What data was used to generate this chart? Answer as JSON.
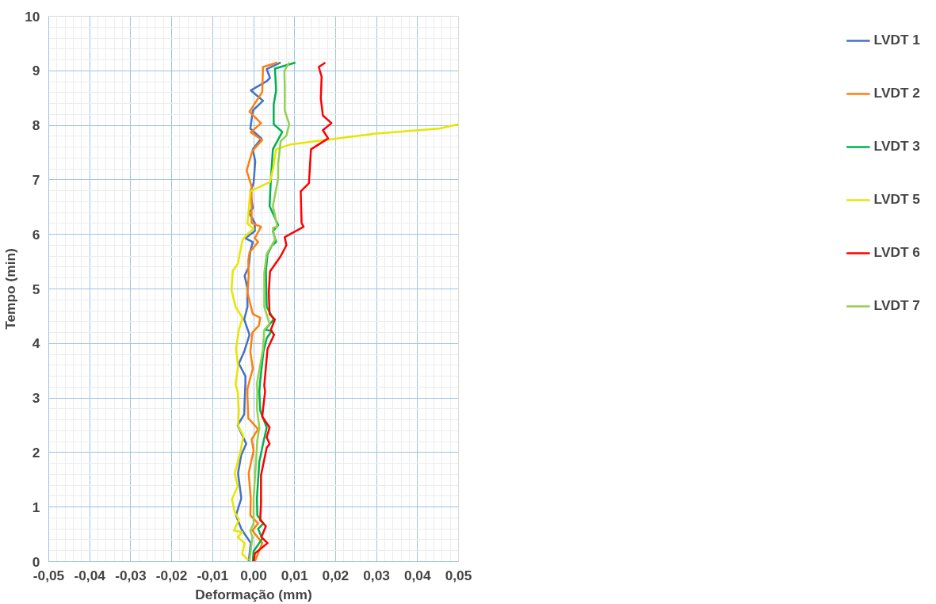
{
  "chart_data": {
    "type": "line",
    "xlabel": "Deformação (mm)",
    "ylabel": "Tempo (min)",
    "xlim": [
      -0.05,
      0.05
    ],
    "ylim": [
      0,
      10
    ],
    "xticks": [
      {
        "value": -0.05,
        "label": "-0,05"
      },
      {
        "value": -0.04,
        "label": "-0,04"
      },
      {
        "value": -0.03,
        "label": "-0,03"
      },
      {
        "value": -0.02,
        "label": "-0,02"
      },
      {
        "value": -0.01,
        "label": "-0,01"
      },
      {
        "value": 0,
        "label": "0,00"
      },
      {
        "value": 0.01,
        "label": "0,01"
      },
      {
        "value": 0.02,
        "label": "0,02"
      },
      {
        "value": 0.03,
        "label": "0,03"
      },
      {
        "value": 0.04,
        "label": "0,04"
      },
      {
        "value": 0.05,
        "label": "0,05"
      }
    ],
    "yticks": [
      0,
      1,
      2,
      3,
      4,
      5,
      6,
      7,
      8,
      9,
      10
    ],
    "grid": true,
    "legend": "right",
    "marker": "none",
    "line_style": "solid",
    "series": [
      {
        "name": "LVDT 1",
        "color": "#4472c4",
        "x": [
          -0.0012,
          -0.0007,
          -0.003,
          -0.0043,
          -0.003,
          -0.0038,
          -0.003,
          -0.0018,
          -0.0039,
          -0.0023,
          -0.0022,
          -0.002,
          -0.002,
          -0.0036,
          -0.0023,
          -0.001,
          -0.0023,
          -0.0015,
          -0.0015,
          -0.0022,
          -0.0012,
          -0.0008,
          -0.0002,
          -0.002,
          0.0003,
          0.0003,
          -0.0012,
          -0.0002,
          -0.0008,
          0.0,
          0.0004,
          -0.0002,
          0.0019,
          -0.0008,
          -0.0002,
          0.0023,
          -0.0007,
          0.0032,
          0.004,
          0.0032,
          0.0066
        ],
        "values": [
          0,
          0.34,
          0.6,
          0.85,
          1.16,
          1.62,
          1.96,
          2.16,
          2.5,
          2.7,
          2.92,
          3.28,
          3.4,
          3.63,
          3.85,
          4.16,
          4.44,
          4.67,
          5.02,
          5.24,
          5.4,
          5.7,
          5.86,
          5.93,
          6.06,
          6.21,
          6.4,
          6.48,
          6.79,
          6.94,
          7.34,
          7.56,
          7.76,
          7.94,
          8.27,
          8.45,
          8.64,
          8.81,
          8.87,
          9.03,
          9.15
        ]
      },
      {
        "name": "LVDT 2",
        "color": "#ff7f0e",
        "x": [
          0.0003,
          0.0021,
          -0.0003,
          0.0011,
          -0.0008,
          -0.0007,
          -0.0012,
          0.0,
          -0.0005,
          0.0011,
          -0.0013,
          -0.0015,
          -0.0015,
          -0.0002,
          -0.0008,
          -0.0003,
          0.0013,
          0.0016,
          -0.0002,
          -0.0015,
          -0.0012,
          -0.0013,
          -0.001,
          0.0011,
          0.0003,
          0.0018,
          -0.0005,
          -0.0005,
          -0.0017,
          -0.0003,
          0.0021,
          -0.0007,
          0.0018,
          -0.001,
          0.0021,
          0.0023,
          0.0058
        ],
        "values": [
          0,
          0.34,
          0.57,
          0.7,
          0.85,
          1.16,
          1.62,
          2.04,
          2.24,
          2.43,
          2.63,
          3.01,
          3.17,
          3.54,
          3.85,
          4.2,
          4.33,
          4.47,
          4.54,
          4.93,
          5.24,
          5.52,
          5.67,
          5.86,
          5.93,
          6.14,
          6.21,
          6.88,
          7.17,
          7.53,
          7.73,
          7.87,
          8.04,
          8.25,
          8.61,
          9.07,
          9.15
        ]
      },
      {
        "name": "LVDT 3",
        "color": "#00b050",
        "x": [
          -0.0002,
          0.0,
          0.0021,
          0.0011,
          0.0024,
          0.0009,
          0.0008,
          0.0014,
          0.0023,
          0.0032,
          0.0016,
          0.0014,
          0.0016,
          0.0024,
          0.0032,
          0.0044,
          0.0028,
          0.0049,
          0.0032,
          0.003,
          0.0034,
          0.0045,
          0.0055,
          0.0047,
          0.006,
          0.0039,
          0.0042,
          0.0047,
          0.007,
          0.0049,
          0.0049,
          0.0055,
          0.0052,
          0.0102
        ],
        "values": [
          0,
          0.19,
          0.42,
          0.6,
          0.7,
          0.85,
          1.16,
          1.84,
          2.16,
          2.46,
          2.77,
          3.12,
          3.32,
          3.85,
          4.1,
          4.23,
          4.25,
          4.44,
          4.67,
          5.33,
          5.64,
          5.8,
          5.86,
          6.06,
          6.17,
          6.52,
          6.99,
          7.56,
          7.88,
          8.02,
          8.38,
          8.64,
          9.04,
          9.15
        ]
      },
      {
        "name": "LVDT 5",
        "color": "#e6e600",
        "x": [
          -0.0013,
          -0.0028,
          -0.0022,
          -0.0039,
          -0.0028,
          -0.0048,
          -0.0036,
          -0.0046,
          -0.0053,
          -0.0039,
          -0.0046,
          -0.0033,
          -0.0025,
          -0.0038,
          -0.0036,
          -0.0039,
          -0.0044,
          -0.0038,
          -0.0043,
          -0.0036,
          -0.0027,
          -0.0044,
          -0.0054,
          -0.0051,
          -0.0038,
          -0.0034,
          -0.0027,
          -0.0012,
          0.0,
          -0.0015,
          -0.0012,
          -0.0008,
          0.004,
          0.0047,
          0.0055,
          0.009,
          0.0298,
          0.0453,
          0.05
        ],
        "values": [
          0.03,
          0.14,
          0.34,
          0.45,
          0.54,
          0.57,
          0.77,
          0.91,
          1.14,
          1.38,
          1.62,
          1.99,
          2.3,
          2.5,
          2.77,
          3.12,
          3.25,
          3.59,
          3.9,
          4.25,
          4.47,
          4.67,
          4.98,
          5.33,
          5.47,
          5.64,
          5.9,
          6.03,
          6.1,
          6.2,
          6.45,
          6.79,
          6.96,
          7.19,
          7.56,
          7.65,
          7.85,
          7.94,
          8.02
        ]
      },
      {
        "name": "LVDT 6",
        "color": "#ff0000",
        "x": [
          0.0,
          0.0003,
          0.0034,
          0.0019,
          0.003,
          0.0016,
          0.0018,
          0.0018,
          0.0032,
          0.0039,
          0.0032,
          0.0039,
          0.0021,
          0.0028,
          0.0026,
          0.0034,
          0.005,
          0.0042,
          0.0052,
          0.0039,
          0.0037,
          0.004,
          0.0066,
          0.008,
          0.0076,
          0.0122,
          0.0117,
          0.0115,
          0.0135,
          0.014,
          0.0182,
          0.0169,
          0.019,
          0.0169,
          0.0164,
          0.0166,
          0.0159,
          0.0175
        ],
        "values": [
          0,
          0.15,
          0.34,
          0.45,
          0.65,
          0.76,
          1.07,
          1.58,
          2.09,
          2.16,
          2.28,
          2.46,
          2.66,
          3.12,
          3.23,
          3.9,
          4.16,
          4.25,
          4.44,
          4.54,
          4.93,
          5.32,
          5.6,
          5.8,
          5.95,
          6.14,
          6.21,
          6.79,
          6.94,
          7.56,
          7.76,
          7.91,
          8.04,
          8.18,
          8.49,
          8.89,
          9.07,
          9.15
        ]
      },
      {
        "name": "LVDT 7",
        "color": "#92d050",
        "x": [
          -0.001,
          -0.0003,
          -0.0008,
          0.0,
          0.0,
          0.0006,
          0.0009,
          0.0014,
          0.0008,
          0.0009,
          0.0008,
          0.0023,
          0.0026,
          0.0039,
          0.0026,
          0.0026,
          0.0032,
          0.0052,
          0.0047,
          0.0058,
          0.0047,
          0.006,
          0.006,
          0.0066,
          0.008,
          0.0087,
          0.0076,
          0.0076,
          0.0075,
          0.0087
        ],
        "values": [
          0,
          0.45,
          0.57,
          0.7,
          1.16,
          1.84,
          2.22,
          2.46,
          2.81,
          3.12,
          3.26,
          3.9,
          4.25,
          4.36,
          4.67,
          5.29,
          5.64,
          5.9,
          6.12,
          6.14,
          6.52,
          7.03,
          7.3,
          7.71,
          7.81,
          8.02,
          8.27,
          8.69,
          9.0,
          9.15
        ]
      }
    ]
  }
}
